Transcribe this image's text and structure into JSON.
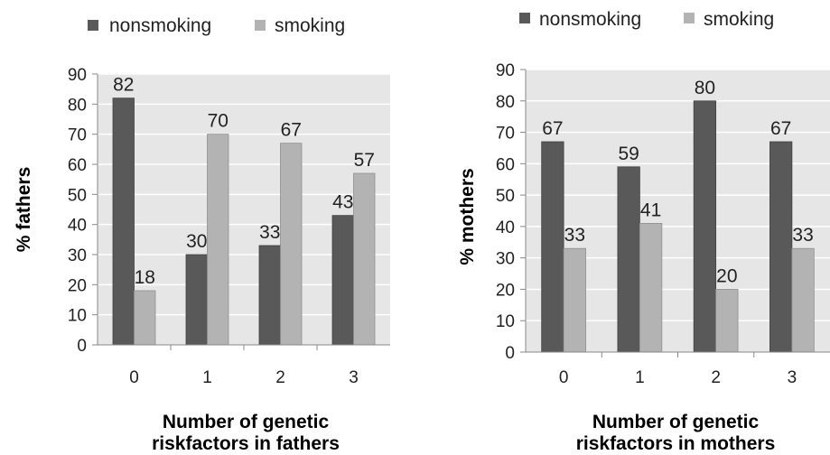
{
  "colors": {
    "nonsmoking": "#595959",
    "smoking": "#b3b3b3",
    "plot_bg": "#e6e6e6",
    "grid": "#ffffff"
  },
  "chart_data": [
    {
      "type": "bar",
      "categories": [
        "0",
        "1",
        "2",
        "3"
      ],
      "series": [
        {
          "name": "nonsmoking",
          "values": [
            82,
            30,
            33,
            43
          ]
        },
        {
          "name": "smoking",
          "values": [
            18,
            70,
            67,
            57
          ]
        }
      ],
      "xlabel_lines": [
        "Number of genetic",
        "riskfactors in fathers"
      ],
      "ylabel": "% fathers",
      "ylim": [
        0,
        90
      ],
      "yticks": [
        0,
        10,
        20,
        30,
        40,
        50,
        60,
        70,
        80,
        90
      ],
      "grid": true,
      "legend": "top"
    },
    {
      "type": "bar",
      "categories": [
        "0",
        "1",
        "2",
        "3"
      ],
      "series": [
        {
          "name": "nonsmoking",
          "values": [
            67,
            59,
            80,
            67
          ]
        },
        {
          "name": "smoking",
          "values": [
            33,
            41,
            20,
            33
          ]
        }
      ],
      "xlabel_lines": [
        "Number of genetic",
        "riskfactors in mothers"
      ],
      "ylabel": "% mothers",
      "ylim": [
        0,
        90
      ],
      "yticks": [
        0,
        10,
        20,
        30,
        40,
        50,
        60,
        70,
        80,
        90
      ],
      "grid": true,
      "legend": "top"
    }
  ]
}
